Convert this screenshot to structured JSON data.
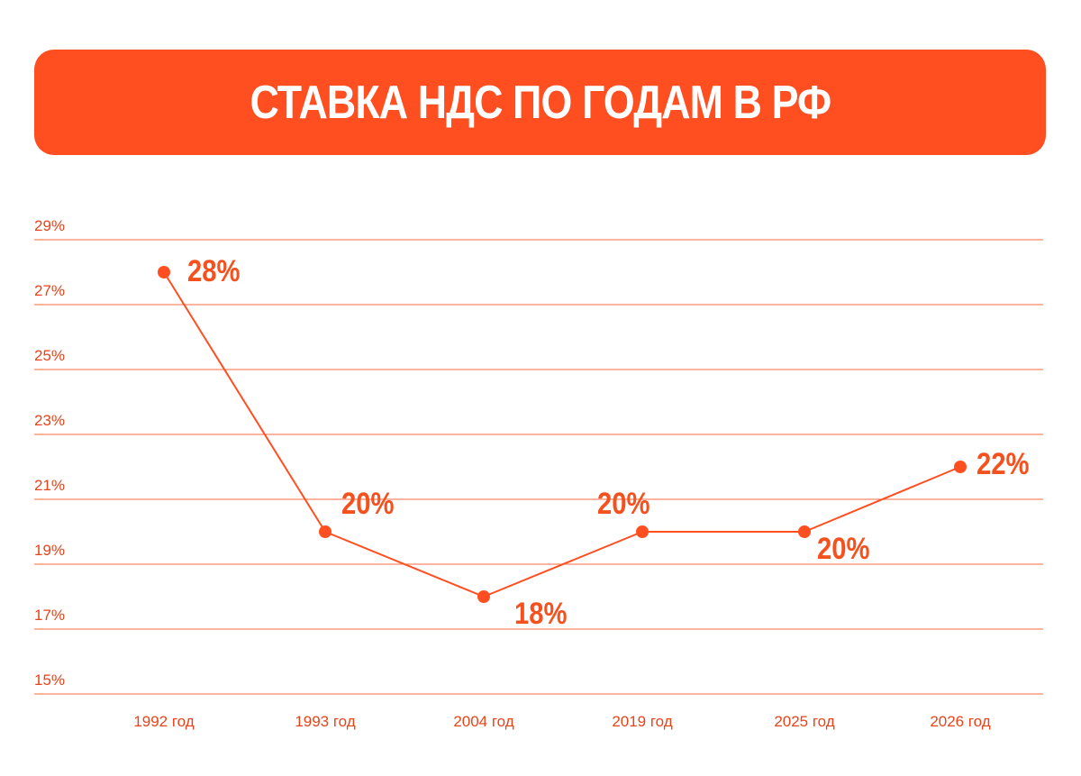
{
  "title": "СТАВКА НДС ПО ГОДАМ В РФ",
  "colors": {
    "accent": "#FF4F21",
    "axis_text": "#E8431A",
    "label": "#F4511E"
  },
  "chart_data": {
    "type": "line",
    "title": "СТАВКА НДС ПО ГОДАМ В РФ",
    "xlabel": "",
    "ylabel": "",
    "categories": [
      "1992 год",
      "1993 год",
      "2004 год",
      "2019 год",
      "2025 год",
      "2026 год"
    ],
    "values": [
      28,
      20,
      18,
      20,
      20,
      22
    ],
    "data_labels": [
      "28%",
      "20%",
      "18%",
      "20%",
      "20%",
      "22%"
    ],
    "ylim": [
      15,
      29
    ],
    "yticks": [
      29,
      27,
      25,
      23,
      21,
      19,
      17,
      15
    ],
    "ytick_labels": [
      "29%",
      "27%",
      "25%",
      "23%",
      "21%",
      "19%",
      "17%",
      "15%"
    ],
    "grid": true,
    "legend": "none"
  }
}
